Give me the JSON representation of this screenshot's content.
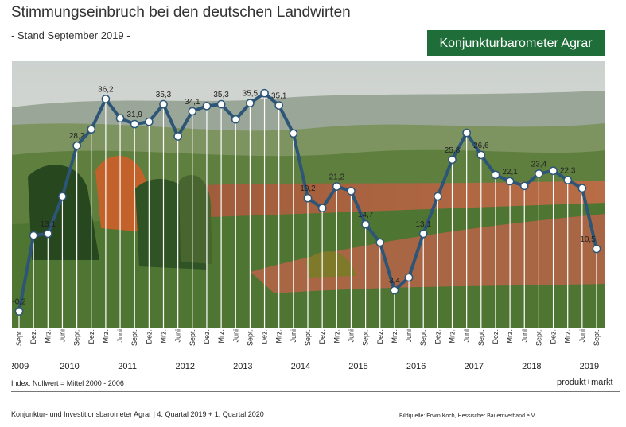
{
  "header": {
    "title": "Stimmungseinbruch bei den deutschen Landwirten",
    "subtitle": "- Stand September 2019 -",
    "badge": "Konjunkturbarometer Agrar"
  },
  "footer": {
    "index_note": "Index: Nullwert = Mittel 2000 - 2006",
    "brand": "produkt+markt",
    "source_left": "Konjunktur- und Investitionsbarometer Agrar | 4. Quartal 2019 + 1. Quartal 2020",
    "image_credit": "Bildquelle: Erwin Koch, Hessischer Bauernverband e.V."
  },
  "colors": {
    "line": "#2c5577",
    "marker_fill": "#ffffff",
    "badge_bg": "#1f6e3a"
  },
  "chart_data": {
    "type": "line",
    "title": "Stimmungseinbruch bei den deutschen Landwirten",
    "subtitle": "- Stand September 2019 -",
    "ylim": [
      -3,
      42
    ],
    "grid": false,
    "categories": [
      "Sept.",
      "Dez.",
      "Mrz.",
      "Juni",
      "Sept.",
      "Dez.",
      "Mrz.",
      "Juni",
      "Sept.",
      "Dez.",
      "Mrz.",
      "Juni",
      "Sept.",
      "Dez.",
      "Mrz.",
      "Juni",
      "Sept.",
      "Dez.",
      "Mrz.",
      "Juni",
      "Sept.",
      "Dez.",
      "Mrz.",
      "Juni",
      "Sept.",
      "Dez.",
      "Mrz.",
      "Juni",
      "Sept.",
      "Dez.",
      "Mrz.",
      "Juni",
      "Sept.",
      "Dez.",
      "Mrz.",
      "Juni",
      "Sept.",
      "Dez.",
      "Mrz.",
      "Juni",
      "Sept."
    ],
    "years": [
      {
        "label": "2009",
        "index": 0
      },
      {
        "label": "2010",
        "index": 3.5
      },
      {
        "label": "2011",
        "index": 7.5
      },
      {
        "label": "2012",
        "index": 11.5
      },
      {
        "label": "2013",
        "index": 15.5
      },
      {
        "label": "2014",
        "index": 19.5
      },
      {
        "label": "2015",
        "index": 23.5
      },
      {
        "label": "2016",
        "index": 27.5
      },
      {
        "label": "2017",
        "index": 31.5
      },
      {
        "label": "2018",
        "index": 35.5
      },
      {
        "label": "2019",
        "index": 39.5
      }
    ],
    "series": [
      {
        "values": [
          -0.2,
          12.8,
          13.1,
          19.5,
          28.2,
          31.0,
          36.2,
          32.9,
          31.9,
          32.3,
          35.3,
          29.8,
          34.1,
          35.0,
          35.3,
          32.7,
          35.5,
          37.2,
          35.1,
          30.3,
          19.2,
          17.5,
          21.2,
          20.4,
          14.7,
          11.6,
          3.4,
          5.6,
          13.1,
          19.5,
          25.8,
          30.4,
          26.6,
          23.2,
          22.1,
          21.3,
          23.4,
          23.9,
          22.3,
          20.9,
          10.5
        ]
      }
    ],
    "data_labels": [
      {
        "index": 0,
        "text": "-0,2"
      },
      {
        "index": 2,
        "text": "13,1"
      },
      {
        "index": 4,
        "text": "28,2"
      },
      {
        "index": 6,
        "text": "36,2"
      },
      {
        "index": 8,
        "text": "31,9"
      },
      {
        "index": 10,
        "text": "35,3"
      },
      {
        "index": 12,
        "text": "34,1"
      },
      {
        "index": 14,
        "text": "35,3"
      },
      {
        "index": 16,
        "text": "35,5"
      },
      {
        "index": 18,
        "text": "35,1"
      },
      {
        "index": 20,
        "text": "19,2"
      },
      {
        "index": 22,
        "text": "21,2"
      },
      {
        "index": 24,
        "text": "14,7"
      },
      {
        "index": 26,
        "text": "3,4"
      },
      {
        "index": 28,
        "text": "13,1"
      },
      {
        "index": 30,
        "text": "25,8"
      },
      {
        "index": 32,
        "text": "26,6"
      },
      {
        "index": 34,
        "text": "22,1"
      },
      {
        "index": 36,
        "text": "23,4"
      },
      {
        "index": 38,
        "text": "22,3"
      },
      {
        "index": 40,
        "text": "10,5"
      }
    ]
  }
}
